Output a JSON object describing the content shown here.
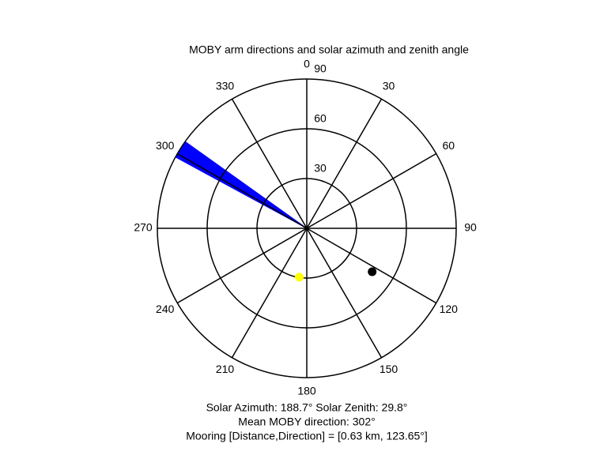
{
  "chart_data": {
    "type": "polar",
    "title": "MOBY arm directions and solar azimuth and zenith angle",
    "rlim": [
      0,
      90
    ],
    "theta_ticks": [
      0,
      30,
      60,
      90,
      120,
      150,
      180,
      210,
      240,
      270,
      300,
      330
    ],
    "r_ticks": [
      30,
      60,
      90
    ],
    "arm_wedge": {
      "theta": [
        298.5,
        305.5
      ],
      "r": 90,
      "color": "#0000ff"
    },
    "points": [
      {
        "theta": 188.7,
        "r": 29.8,
        "color": "#ffff00"
      },
      {
        "theta": 123.65,
        "r": 47.3,
        "color": "#000000"
      }
    ],
    "notes": [
      "Solar Azimuth: 188.7°   Solar Zenith: 29.8°",
      "Mean MOBY direction: 302°",
      "Mooring [Distance,Direction] = [0.63 km, 123.65°]"
    ]
  }
}
